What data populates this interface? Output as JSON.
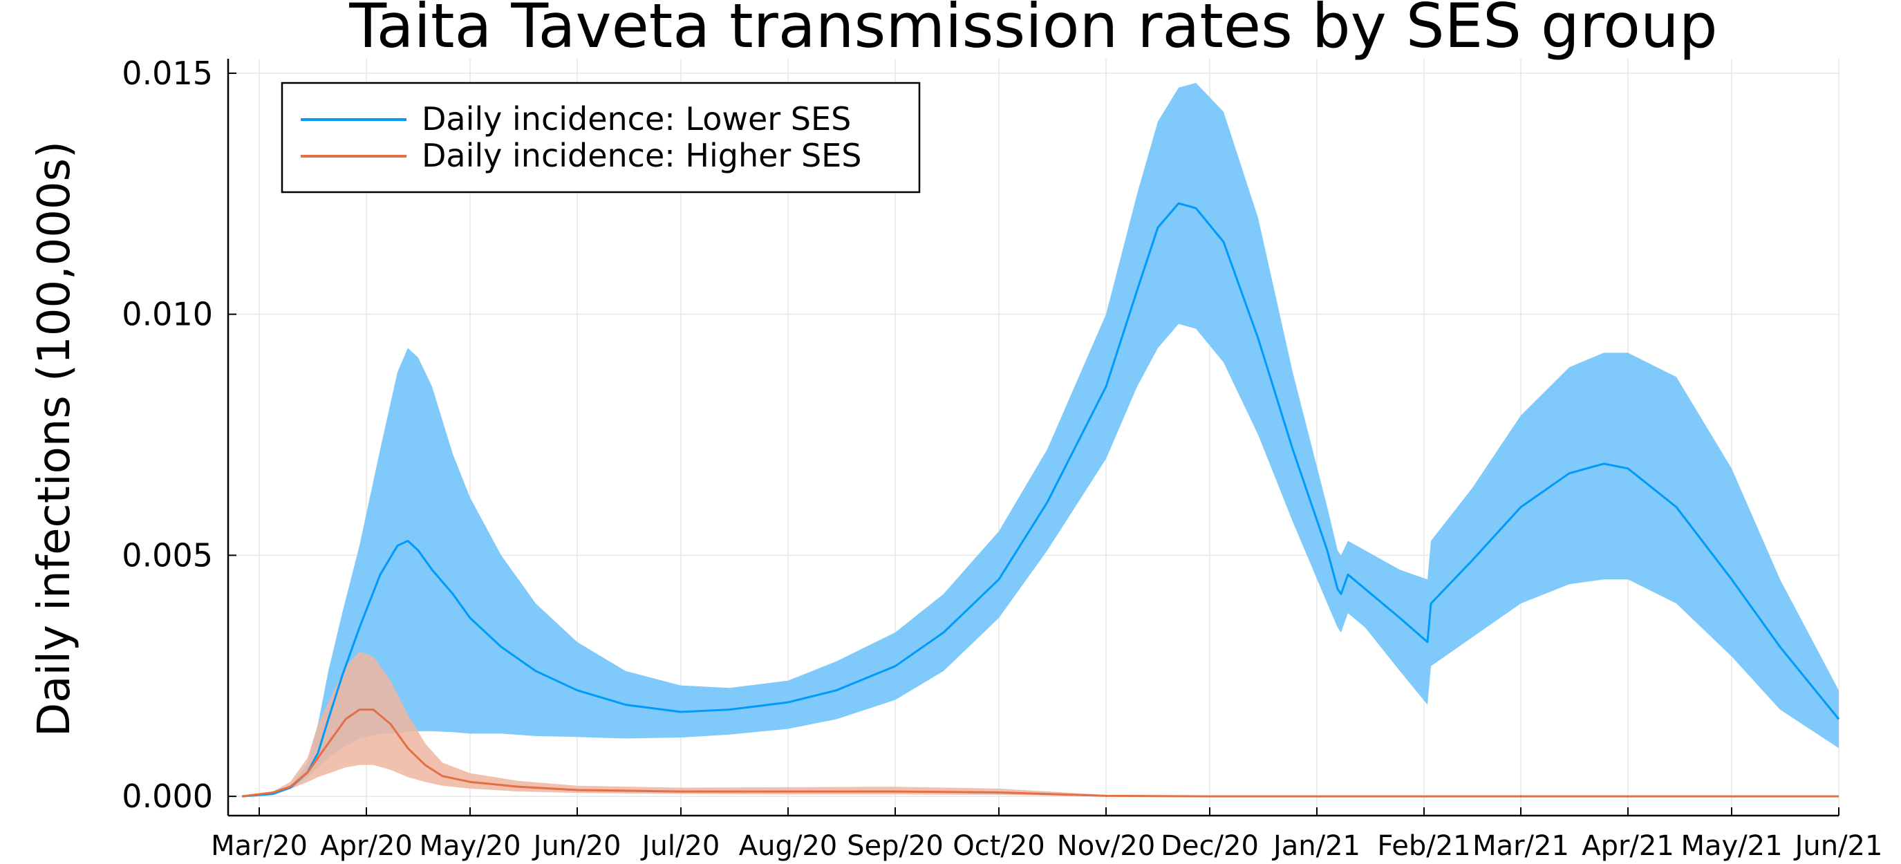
{
  "chart_data": {
    "type": "area",
    "title": "Taita Taveta transmission rates by SES group",
    "xlabel": "",
    "ylabel": "Daily infections (100,000s)",
    "x_tick_labels": [
      "Mar/20",
      "Apr/20",
      "May/20",
      "Jun/20",
      "Jul/20",
      "Aug/20",
      "Sep/20",
      "Oct/20",
      "Nov/20",
      "Dec/20",
      "Jan/21",
      "Feb/21",
      "Mar/21",
      "Apr/21",
      "May/21",
      "Jun/21"
    ],
    "x_tick_dates": [
      "2020-03-01",
      "2020-04-01",
      "2020-05-01",
      "2020-06-01",
      "2020-07-01",
      "2020-08-01",
      "2020-09-01",
      "2020-10-01",
      "2020-11-01",
      "2020-12-01",
      "2021-01-01",
      "2021-02-01",
      "2021-03-01",
      "2021-04-01",
      "2021-05-01",
      "2021-06-01"
    ],
    "xlim": [
      "2020-02-21",
      "2021-06-01"
    ],
    "y_tick_labels": [
      "0.000",
      "0.005",
      "0.010",
      "0.015"
    ],
    "y_ticks": [
      0,
      0.005,
      0.01,
      0.015
    ],
    "ylim": [
      -0.0004,
      0.0153
    ],
    "grid": true,
    "legend_position": "top-left",
    "series": [
      {
        "name": "Daily incidence: Lower SES",
        "color": "#009AFA",
        "band_color": "#7FCAFA",
        "x": [
          "2020-02-25",
          "2020-03-05",
          "2020-03-10",
          "2020-03-15",
          "2020-03-18",
          "2020-03-21",
          "2020-03-25",
          "2020-03-30",
          "2020-04-05",
          "2020-04-10",
          "2020-04-13",
          "2020-04-16",
          "2020-04-20",
          "2020-04-26",
          "2020-05-01",
          "2020-05-10",
          "2020-05-20",
          "2020-06-01",
          "2020-06-15",
          "2020-07-01",
          "2020-07-15",
          "2020-08-01",
          "2020-08-15",
          "2020-09-01",
          "2020-09-15",
          "2020-10-01",
          "2020-10-15",
          "2020-11-01",
          "2020-11-10",
          "2020-11-16",
          "2020-11-22",
          "2020-11-27",
          "2020-12-05",
          "2020-12-15",
          "2020-12-25",
          "2021-01-04",
          "2021-01-07",
          "2021-01-08",
          "2021-01-10",
          "2021-01-15",
          "2021-01-25",
          "2021-02-02",
          "2021-02-03",
          "2021-02-15",
          "2021-03-01",
          "2021-03-15",
          "2021-03-25",
          "2021-04-01",
          "2021-04-15",
          "2021-05-01",
          "2021-05-15",
          "2021-06-01"
        ],
        "values": [
          0.0,
          5e-05,
          0.00018,
          0.0005,
          0.0009,
          0.0016,
          0.0025,
          0.0035,
          0.0046,
          0.0052,
          0.0053,
          0.0051,
          0.0047,
          0.0042,
          0.0037,
          0.0031,
          0.0026,
          0.0022,
          0.0019,
          0.00175,
          0.0018,
          0.00195,
          0.0022,
          0.0027,
          0.0034,
          0.0045,
          0.0061,
          0.0085,
          0.0105,
          0.0118,
          0.0123,
          0.0122,
          0.0115,
          0.0095,
          0.0072,
          0.0051,
          0.0043,
          0.0042,
          0.0046,
          0.0043,
          0.0037,
          0.0032,
          0.004,
          0.0049,
          0.006,
          0.0067,
          0.0069,
          0.0068,
          0.006,
          0.0045,
          0.0031,
          0.0016
        ],
        "lower": [
          0.0,
          5e-05,
          0.00015,
          0.0004,
          0.0006,
          0.0008,
          0.001,
          0.0012,
          0.0013,
          0.0013,
          0.00135,
          0.00135,
          0.00135,
          0.00133,
          0.0013,
          0.0013,
          0.00125,
          0.00123,
          0.0012,
          0.00122,
          0.00128,
          0.0014,
          0.0016,
          0.002,
          0.0026,
          0.0037,
          0.0051,
          0.007,
          0.0085,
          0.0093,
          0.0098,
          0.0097,
          0.009,
          0.0075,
          0.0057,
          0.004,
          0.0035,
          0.0034,
          0.0038,
          0.0035,
          0.0026,
          0.0019,
          0.0027,
          0.0033,
          0.004,
          0.0044,
          0.0045,
          0.0045,
          0.004,
          0.0029,
          0.0018,
          0.001
        ],
        "upper": [
          0.0,
          5e-05,
          0.0002,
          0.0007,
          0.0015,
          0.0026,
          0.0038,
          0.0052,
          0.0072,
          0.0088,
          0.0093,
          0.0091,
          0.0085,
          0.0071,
          0.0062,
          0.005,
          0.004,
          0.0032,
          0.0026,
          0.0023,
          0.00225,
          0.0024,
          0.0028,
          0.0034,
          0.0042,
          0.0055,
          0.0072,
          0.01,
          0.0125,
          0.014,
          0.0147,
          0.0148,
          0.0142,
          0.012,
          0.0088,
          0.006,
          0.0051,
          0.005,
          0.0053,
          0.0051,
          0.0047,
          0.0045,
          0.0053,
          0.0064,
          0.0079,
          0.0089,
          0.0092,
          0.0092,
          0.0087,
          0.0068,
          0.0045,
          0.0022
        ]
      },
      {
        "name": "Daily incidence: Higher SES",
        "color": "#E26F46",
        "band_color": "#F0B5A0",
        "x": [
          "2020-02-25",
          "2020-03-05",
          "2020-03-10",
          "2020-03-15",
          "2020-03-18",
          "2020-03-22",
          "2020-03-26",
          "2020-03-30",
          "2020-04-03",
          "2020-04-08",
          "2020-04-13",
          "2020-04-18",
          "2020-04-23",
          "2020-05-01",
          "2020-05-15",
          "2020-06-01",
          "2020-07-01",
          "2020-08-01",
          "2020-09-01",
          "2020-10-01",
          "2020-11-01",
          "2020-12-01",
          "2021-01-01",
          "2021-02-01",
          "2021-03-01",
          "2021-04-01",
          "2021-05-01",
          "2021-06-01"
        ],
        "values": [
          0.0,
          8e-05,
          0.0002,
          0.0005,
          0.0008,
          0.0012,
          0.0016,
          0.0018,
          0.0018,
          0.0015,
          0.001,
          0.00065,
          0.00042,
          0.0003,
          0.0002,
          0.00013,
          0.0001,
          0.0001,
          0.0001,
          8e-05,
          1e-05,
          0.0,
          0.0,
          0.0,
          0.0,
          0.0,
          0.0,
          0.0
        ],
        "lower": [
          0.0,
          5e-05,
          0.00015,
          0.0003,
          0.0004,
          0.0005,
          0.0006,
          0.00065,
          0.00065,
          0.00055,
          0.0004,
          0.0003,
          0.00022,
          0.00016,
          0.0001,
          7e-05,
          5e-05,
          4e-05,
          4e-05,
          3e-05,
          0.0,
          0.0,
          0.0,
          0.0,
          0.0,
          0.0,
          0.0,
          0.0
        ],
        "upper": [
          0.0,
          0.0001,
          0.0003,
          0.0008,
          0.0015,
          0.0021,
          0.0027,
          0.003,
          0.0029,
          0.0024,
          0.0017,
          0.0011,
          0.0007,
          0.00048,
          0.00032,
          0.00022,
          0.00018,
          0.00019,
          0.0002,
          0.00016,
          3e-05,
          0.0,
          0.0,
          0.0,
          0.0,
          0.0,
          0.0,
          0.0
        ]
      }
    ]
  }
}
